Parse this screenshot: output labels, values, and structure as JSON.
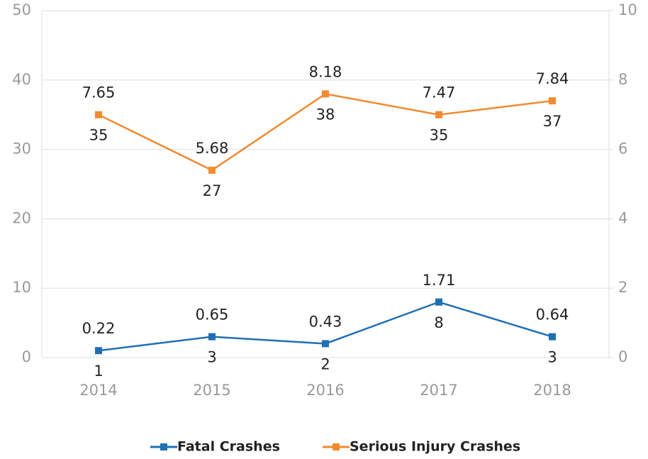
{
  "chart_data": {
    "type": "line",
    "categories": [
      "2014",
      "2015",
      "2016",
      "2017",
      "2018"
    ],
    "series": [
      {
        "name": "Fatal Crashes",
        "color": "#1f6fb4",
        "values": [
          1,
          3,
          2,
          8,
          3
        ],
        "rates": [
          0.22,
          0.65,
          0.43,
          1.71,
          0.64
        ]
      },
      {
        "name": "Serious Injury Crashes",
        "color": "#f28a30",
        "values": [
          35,
          27,
          38,
          35,
          37
        ],
        "rates": [
          7.65,
          5.68,
          8.18,
          7.47,
          7.84
        ]
      }
    ],
    "ylim": [
      0,
      50
    ],
    "yticks": [
      0,
      10,
      20,
      30,
      40,
      50
    ],
    "y2lim": [
      0,
      10
    ],
    "y2ticks": [
      0,
      2,
      4,
      6,
      8,
      10
    ],
    "grid": true,
    "legend": "bottom"
  }
}
